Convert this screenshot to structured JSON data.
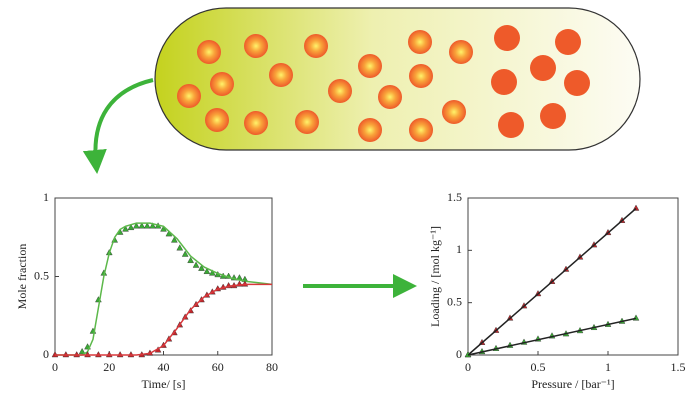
{
  "chart_data": [
    {
      "type": "scatter",
      "xlabel": "Time/ [s]",
      "ylabel": "Mole fraction",
      "xlim": [
        0,
        80
      ],
      "xticks": [
        0,
        20,
        40,
        60,
        80
      ],
      "ylim": [
        0,
        1
      ],
      "yticks": [
        0,
        0.5,
        1
      ],
      "series": [
        {
          "color": "#3aa935",
          "style": "markers",
          "x": [
            10,
            12,
            14,
            16,
            18,
            20,
            22,
            24,
            26,
            28,
            30,
            32,
            34,
            36,
            38,
            40,
            42,
            44,
            46,
            48,
            50,
            52,
            54,
            56,
            58,
            60,
            62,
            64,
            66,
            68,
            70
          ],
          "values": [
            0.02,
            0.05,
            0.15,
            0.35,
            0.52,
            0.65,
            0.73,
            0.78,
            0.8,
            0.81,
            0.82,
            0.82,
            0.82,
            0.82,
            0.82,
            0.8,
            0.77,
            0.73,
            0.68,
            0.64,
            0.6,
            0.57,
            0.55,
            0.53,
            0.52,
            0.51,
            0.5,
            0.5,
            0.49,
            0.49,
            0.48
          ]
        },
        {
          "color": "#5cb84a",
          "style": "line",
          "x": [
            0,
            10,
            12,
            14,
            16,
            18,
            20,
            22,
            24,
            26,
            28,
            30,
            35,
            40,
            45,
            50,
            55,
            60,
            65,
            70,
            75,
            80
          ],
          "values": [
            0,
            0,
            0.02,
            0.1,
            0.3,
            0.5,
            0.65,
            0.75,
            0.8,
            0.82,
            0.83,
            0.84,
            0.84,
            0.82,
            0.74,
            0.63,
            0.56,
            0.52,
            0.49,
            0.47,
            0.46,
            0.45
          ]
        },
        {
          "color": "#c0262b",
          "style": "markers",
          "x": [
            0,
            4,
            8,
            12,
            16,
            20,
            24,
            28,
            32,
            35,
            38,
            40,
            42,
            44,
            46,
            48,
            50,
            52,
            54,
            56,
            58,
            60,
            62,
            64,
            66,
            68,
            70
          ],
          "values": [
            0,
            0,
            0,
            0,
            0,
            0,
            0,
            0,
            0,
            0.01,
            0.03,
            0.06,
            0.1,
            0.14,
            0.19,
            0.24,
            0.28,
            0.32,
            0.35,
            0.38,
            0.4,
            0.42,
            0.43,
            0.44,
            0.44,
            0.45,
            0.45
          ]
        },
        {
          "color": "#d8383c",
          "style": "line",
          "x": [
            0,
            30,
            35,
            40,
            45,
            50,
            55,
            60,
            65,
            70,
            75,
            80
          ],
          "values": [
            0,
            0,
            0.01,
            0.06,
            0.17,
            0.29,
            0.37,
            0.42,
            0.44,
            0.45,
            0.45,
            0.45
          ]
        }
      ]
    },
    {
      "type": "scatter",
      "xlabel": "Pressure / [bar⁻¹]",
      "ylabel": "Loading / [mol kg⁻¹]",
      "xlim": [
        0,
        1.5
      ],
      "xticks": [
        0,
        0.5,
        1,
        1.5
      ],
      "ylim": [
        0,
        1.5
      ],
      "yticks": [
        0,
        0.5,
        1,
        1.5
      ],
      "series": [
        {
          "color": "#c0262b",
          "style": "markers",
          "x": [
            0,
            0.1,
            0.2,
            0.3,
            0.4,
            0.5,
            0.6,
            0.7,
            0.8,
            0.9,
            1.0,
            1.1,
            1.2
          ],
          "values": [
            0,
            0.117,
            0.233,
            0.35,
            0.467,
            0.583,
            0.7,
            0.817,
            0.933,
            1.05,
            1.167,
            1.283,
            1.4
          ]
        },
        {
          "color": "#222222",
          "style": "line",
          "x": [
            0,
            1.2
          ],
          "values": [
            0,
            1.4
          ]
        },
        {
          "color": "#3aa935",
          "style": "markers",
          "x": [
            0,
            0.1,
            0.2,
            0.3,
            0.4,
            0.5,
            0.6,
            0.7,
            0.8,
            0.9,
            1.0,
            1.1,
            1.2
          ],
          "values": [
            0,
            0.03,
            0.06,
            0.09,
            0.12,
            0.15,
            0.18,
            0.2,
            0.23,
            0.26,
            0.29,
            0.32,
            0.35
          ]
        },
        {
          "color": "#222222",
          "style": "line",
          "x": [
            0,
            1.2
          ],
          "values": [
            0,
            0.35
          ]
        }
      ]
    }
  ]
}
